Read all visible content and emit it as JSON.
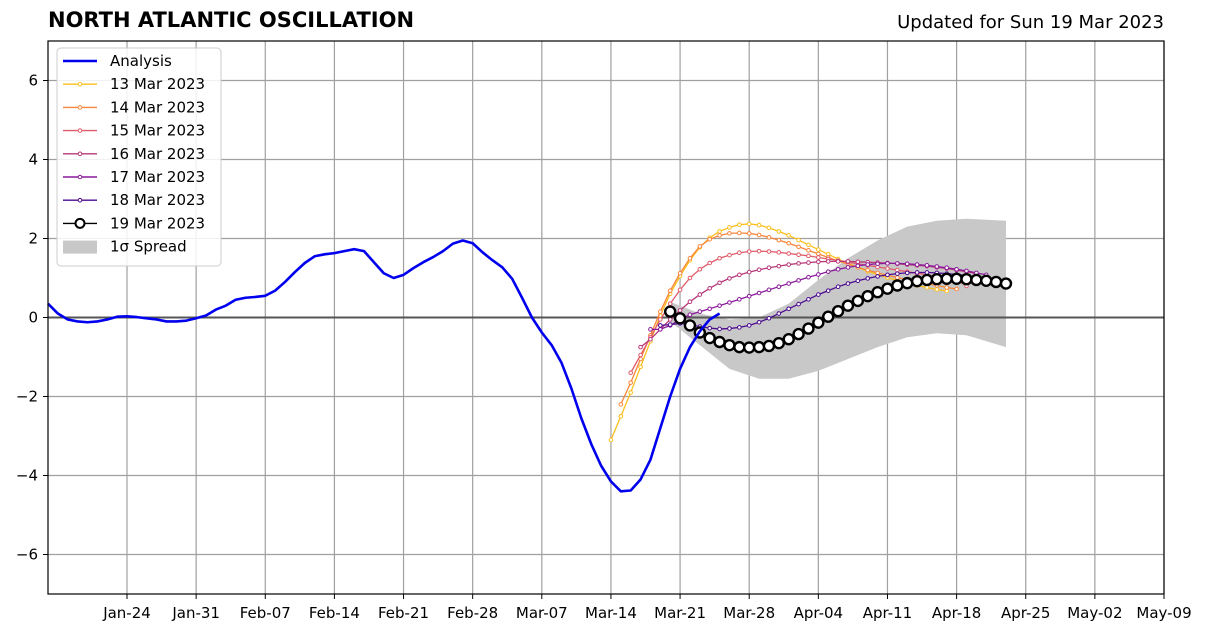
{
  "header": {
    "title": "NORTH ATLANTIC OSCILLATION",
    "updated": "Updated for Sun 19 Mar 2023"
  },
  "chart_data": {
    "type": "line",
    "title": "NORTH ATLANTIC OSCILLATION",
    "subtitle": "Updated for Sun 19 Mar 2023",
    "xlabel": "",
    "ylabel": "",
    "x_axis": {
      "start": "2023-01-16",
      "end": "2023-05-09",
      "ticks": [
        "Jan-24",
        "Jan-31",
        "Feb-07",
        "Feb-14",
        "Feb-21",
        "Feb-28",
        "Mar-07",
        "Mar-14",
        "Mar-21",
        "Mar-28",
        "Apr-04",
        "Apr-11",
        "Apr-18",
        "Apr-25",
        "May-02",
        "May-09"
      ]
    },
    "ylim": [
      -7,
      7
    ],
    "yticks": [
      -6,
      -4,
      -2,
      0,
      2,
      4,
      6
    ],
    "ytick_labels": [
      "−6",
      "−4",
      "−2",
      "0",
      "2",
      "4",
      "6"
    ],
    "grid": true,
    "zero_line": true,
    "legend_position": "top-left",
    "analysis": {
      "name": "Analysis",
      "color": "#0000ee",
      "points": [
        [
          "2023-01-16",
          0.35
        ],
        [
          "2023-01-17",
          0.1
        ],
        [
          "2023-01-18",
          -0.05
        ],
        [
          "2023-01-19",
          -0.1
        ],
        [
          "2023-01-20",
          -0.12
        ],
        [
          "2023-01-21",
          -0.1
        ],
        [
          "2023-01-22",
          -0.05
        ],
        [
          "2023-01-23",
          0.02
        ],
        [
          "2023-01-24",
          0.03
        ],
        [
          "2023-01-25",
          0.01
        ],
        [
          "2023-01-26",
          -0.02
        ],
        [
          "2023-01-27",
          -0.05
        ],
        [
          "2023-01-28",
          -0.1
        ],
        [
          "2023-01-29",
          -0.1
        ],
        [
          "2023-01-30",
          -0.08
        ],
        [
          "2023-01-31",
          -0.02
        ],
        [
          "2023-02-01",
          0.05
        ],
        [
          "2023-02-02",
          0.2
        ],
        [
          "2023-02-03",
          0.3
        ],
        [
          "2023-02-04",
          0.45
        ],
        [
          "2023-02-05",
          0.5
        ],
        [
          "2023-02-06",
          0.52
        ],
        [
          "2023-02-07",
          0.55
        ],
        [
          "2023-02-08",
          0.68
        ],
        [
          "2023-02-09",
          0.9
        ],
        [
          "2023-02-10",
          1.15
        ],
        [
          "2023-02-11",
          1.38
        ],
        [
          "2023-02-12",
          1.55
        ],
        [
          "2023-02-13",
          1.6
        ],
        [
          "2023-02-14",
          1.63
        ],
        [
          "2023-02-15",
          1.68
        ],
        [
          "2023-02-16",
          1.73
        ],
        [
          "2023-02-17",
          1.68
        ],
        [
          "2023-02-18",
          1.4
        ],
        [
          "2023-02-19",
          1.12
        ],
        [
          "2023-02-20",
          1.0
        ],
        [
          "2023-02-21",
          1.08
        ],
        [
          "2023-02-22",
          1.25
        ],
        [
          "2023-02-23",
          1.4
        ],
        [
          "2023-02-24",
          1.53
        ],
        [
          "2023-02-25",
          1.68
        ],
        [
          "2023-02-26",
          1.87
        ],
        [
          "2023-02-27",
          1.95
        ],
        [
          "2023-02-28",
          1.88
        ],
        [
          "2023-03-01",
          1.65
        ],
        [
          "2023-03-02",
          1.45
        ],
        [
          "2023-03-03",
          1.27
        ],
        [
          "2023-03-04",
          0.98
        ],
        [
          "2023-03-05",
          0.5
        ],
        [
          "2023-03-06",
          0.0
        ],
        [
          "2023-03-07",
          -0.38
        ],
        [
          "2023-03-08",
          -0.7
        ],
        [
          "2023-03-09",
          -1.15
        ],
        [
          "2023-03-10",
          -1.8
        ],
        [
          "2023-03-11",
          -2.55
        ],
        [
          "2023-03-12",
          -3.2
        ],
        [
          "2023-03-13",
          -3.75
        ],
        [
          "2023-03-14",
          -4.15
        ],
        [
          "2023-03-15",
          -4.4
        ],
        [
          "2023-03-16",
          -4.38
        ],
        [
          "2023-03-17",
          -4.1
        ],
        [
          "2023-03-18",
          -3.6
        ],
        [
          "2023-03-19",
          -2.8
        ],
        [
          "2023-03-20",
          -2.0
        ],
        [
          "2023-03-21",
          -1.3
        ],
        [
          "2023-03-22",
          -0.75
        ],
        [
          "2023-03-23",
          -0.35
        ],
        [
          "2023-03-24",
          -0.05
        ],
        [
          "2023-03-25",
          0.1
        ]
      ]
    },
    "series": [
      {
        "name": "13 Mar 2023",
        "color": "#fbbf1d",
        "x": [
          "2023-03-14",
          "2023-03-15",
          "2023-03-16",
          "2023-03-17",
          "2023-03-18",
          "2023-03-19",
          "2023-03-20",
          "2023-03-21",
          "2023-03-22",
          "2023-03-23",
          "2023-03-24",
          "2023-03-25",
          "2023-03-26",
          "2023-03-27",
          "2023-03-28",
          "2023-03-29",
          "2023-03-30",
          "2023-03-31",
          "2023-04-01",
          "2023-04-02",
          "2023-04-03",
          "2023-04-04",
          "2023-04-05",
          "2023-04-06",
          "2023-04-07",
          "2023-04-08",
          "2023-04-09",
          "2023-04-10",
          "2023-04-11",
          "2023-04-12",
          "2023-04-13",
          "2023-04-14",
          "2023-04-15",
          "2023-04-16",
          "2023-04-17"
        ],
        "values": [
          -3.1,
          -2.5,
          -1.9,
          -1.25,
          -0.6,
          0.05,
          0.6,
          1.05,
          1.45,
          1.78,
          2.02,
          2.18,
          2.28,
          2.35,
          2.37,
          2.34,
          2.27,
          2.18,
          2.08,
          1.96,
          1.84,
          1.72,
          1.6,
          1.48,
          1.37,
          1.27,
          1.17,
          1.09,
          1.01,
          0.94,
          0.87,
          0.81,
          0.76,
          0.71,
          0.67
        ]
      },
      {
        "name": "14 Mar 2023",
        "color": "#f8863c",
        "x": [
          "2023-03-15",
          "2023-03-16",
          "2023-03-17",
          "2023-03-18",
          "2023-03-19",
          "2023-03-20",
          "2023-03-21",
          "2023-03-22",
          "2023-03-23",
          "2023-03-24",
          "2023-03-25",
          "2023-03-26",
          "2023-03-27",
          "2023-03-28",
          "2023-03-29",
          "2023-03-30",
          "2023-03-31",
          "2023-04-01",
          "2023-04-02",
          "2023-04-03",
          "2023-04-04",
          "2023-04-05",
          "2023-04-06",
          "2023-04-07",
          "2023-04-08",
          "2023-04-09",
          "2023-04-10",
          "2023-04-11",
          "2023-04-12",
          "2023-04-13",
          "2023-04-14",
          "2023-04-15",
          "2023-04-16",
          "2023-04-17",
          "2023-04-18"
        ],
        "values": [
          -2.2,
          -1.65,
          -1.05,
          -0.45,
          0.15,
          0.68,
          1.12,
          1.5,
          1.8,
          1.98,
          2.08,
          2.13,
          2.14,
          2.13,
          2.09,
          2.03,
          1.96,
          1.88,
          1.79,
          1.7,
          1.61,
          1.52,
          1.43,
          1.35,
          1.27,
          1.2,
          1.13,
          1.07,
          1.01,
          0.96,
          0.91,
          0.86,
          0.81,
          0.76,
          0.72
        ]
      },
      {
        "name": "15 Mar 2023",
        "color": "#e05b6a",
        "x": [
          "2023-03-16",
          "2023-03-17",
          "2023-03-18",
          "2023-03-19",
          "2023-03-20",
          "2023-03-21",
          "2023-03-22",
          "2023-03-23",
          "2023-03-24",
          "2023-03-25",
          "2023-03-26",
          "2023-03-27",
          "2023-03-28",
          "2023-03-29",
          "2023-03-30",
          "2023-03-31",
          "2023-04-01",
          "2023-04-02",
          "2023-04-03",
          "2023-04-04",
          "2023-04-05",
          "2023-04-06",
          "2023-04-07",
          "2023-04-08",
          "2023-04-09",
          "2023-04-10",
          "2023-04-11",
          "2023-04-12",
          "2023-04-13",
          "2023-04-14",
          "2023-04-15",
          "2023-04-16",
          "2023-04-17",
          "2023-04-18",
          "2023-04-19"
        ],
        "values": [
          -1.4,
          -0.95,
          -0.5,
          -0.05,
          0.35,
          0.7,
          1.0,
          1.22,
          1.38,
          1.5,
          1.58,
          1.64,
          1.67,
          1.68,
          1.67,
          1.65,
          1.62,
          1.59,
          1.56,
          1.52,
          1.48,
          1.44,
          1.4,
          1.36,
          1.32,
          1.28,
          1.24,
          1.2,
          1.16,
          1.12,
          1.08,
          1.04,
          1.0,
          0.96,
          0.8
        ]
      },
      {
        "name": "16 Mar 2023",
        "color": "#b73779",
        "x": [
          "2023-03-17",
          "2023-03-18",
          "2023-03-19",
          "2023-03-20",
          "2023-03-21",
          "2023-03-22",
          "2023-03-23",
          "2023-03-24",
          "2023-03-25",
          "2023-03-26",
          "2023-03-27",
          "2023-03-28",
          "2023-03-29",
          "2023-03-30",
          "2023-03-31",
          "2023-04-01",
          "2023-04-02",
          "2023-04-03",
          "2023-04-04",
          "2023-04-05",
          "2023-04-06",
          "2023-04-07",
          "2023-04-08",
          "2023-04-09",
          "2023-04-10",
          "2023-04-11",
          "2023-04-12",
          "2023-04-13",
          "2023-04-14",
          "2023-04-15",
          "2023-04-16",
          "2023-04-17",
          "2023-04-18",
          "2023-04-19",
          "2023-04-20"
        ],
        "values": [
          -0.75,
          -0.55,
          -0.3,
          -0.05,
          0.18,
          0.4,
          0.58,
          0.74,
          0.88,
          0.99,
          1.08,
          1.15,
          1.21,
          1.26,
          1.3,
          1.34,
          1.37,
          1.39,
          1.41,
          1.42,
          1.42,
          1.42,
          1.41,
          1.4,
          1.39,
          1.38,
          1.36,
          1.34,
          1.32,
          1.3,
          1.27,
          1.24,
          1.2,
          1.16,
          1.11
        ]
      },
      {
        "name": "17 Mar 2023",
        "color": "#8a1a9b",
        "x": [
          "2023-03-18",
          "2023-03-19",
          "2023-03-20",
          "2023-03-21",
          "2023-03-22",
          "2023-03-23",
          "2023-03-24",
          "2023-03-25",
          "2023-03-26",
          "2023-03-27",
          "2023-03-28",
          "2023-03-29",
          "2023-03-30",
          "2023-03-31",
          "2023-04-01",
          "2023-04-02",
          "2023-04-03",
          "2023-04-04",
          "2023-04-05",
          "2023-04-06",
          "2023-04-07",
          "2023-04-08",
          "2023-04-09",
          "2023-04-10",
          "2023-04-11",
          "2023-04-12",
          "2023-04-13",
          "2023-04-14",
          "2023-04-15",
          "2023-04-16",
          "2023-04-17",
          "2023-04-18",
          "2023-04-19",
          "2023-04-20",
          "2023-04-21"
        ],
        "values": [
          -0.3,
          -0.3,
          -0.2,
          -0.05,
          0.07,
          0.15,
          0.22,
          0.3,
          0.38,
          0.46,
          0.54,
          0.62,
          0.7,
          0.78,
          0.86,
          0.94,
          1.02,
          1.09,
          1.16,
          1.22,
          1.27,
          1.31,
          1.34,
          1.36,
          1.37,
          1.37,
          1.36,
          1.34,
          1.32,
          1.29,
          1.26,
          1.22,
          1.18,
          1.13,
          1.08
        ]
      },
      {
        "name": "18 Mar 2023",
        "color": "#4c0a8f",
        "x": [
          "2023-03-19",
          "2023-03-20",
          "2023-03-21",
          "2023-03-22",
          "2023-03-23",
          "2023-03-24",
          "2023-03-25",
          "2023-03-26",
          "2023-03-27",
          "2023-03-28",
          "2023-03-29",
          "2023-03-30",
          "2023-03-31",
          "2023-04-01",
          "2023-04-02",
          "2023-04-03",
          "2023-04-04",
          "2023-04-05",
          "2023-04-06",
          "2023-04-07",
          "2023-04-08",
          "2023-04-09",
          "2023-04-10",
          "2023-04-11",
          "2023-04-12",
          "2023-04-13",
          "2023-04-14",
          "2023-04-15",
          "2023-04-16",
          "2023-04-17",
          "2023-04-18",
          "2023-04-19",
          "2023-04-20",
          "2023-04-21",
          "2023-04-22"
        ],
        "values": [
          -0.2,
          -0.18,
          -0.15,
          -0.18,
          -0.23,
          -0.27,
          -0.29,
          -0.28,
          -0.25,
          -0.2,
          -0.12,
          -0.02,
          0.1,
          0.22,
          0.34,
          0.46,
          0.58,
          0.68,
          0.78,
          0.86,
          0.93,
          0.99,
          1.04,
          1.08,
          1.11,
          1.13,
          1.14,
          1.14,
          1.13,
          1.11,
          1.09,
          1.06,
          1.02,
          0.98,
          0.93
        ]
      },
      {
        "name": "19 Mar 2023",
        "color": "#000000",
        "x": [
          "2023-03-20",
          "2023-03-21",
          "2023-03-22",
          "2023-03-23",
          "2023-03-24",
          "2023-03-25",
          "2023-03-26",
          "2023-03-27",
          "2023-03-28",
          "2023-03-29",
          "2023-03-30",
          "2023-03-31",
          "2023-04-01",
          "2023-04-02",
          "2023-04-03",
          "2023-04-04",
          "2023-04-05",
          "2023-04-06",
          "2023-04-07",
          "2023-04-08",
          "2023-04-09",
          "2023-04-10",
          "2023-04-11",
          "2023-04-12",
          "2023-04-13",
          "2023-04-14",
          "2023-04-15",
          "2023-04-16",
          "2023-04-17",
          "2023-04-18",
          "2023-04-19",
          "2023-04-20",
          "2023-04-21",
          "2023-04-22",
          "2023-04-23"
        ],
        "values": [
          0.15,
          -0.02,
          -0.2,
          -0.38,
          -0.52,
          -0.62,
          -0.7,
          -0.75,
          -0.76,
          -0.75,
          -0.72,
          -0.65,
          -0.55,
          -0.42,
          -0.28,
          -0.13,
          0.02,
          0.16,
          0.3,
          0.42,
          0.54,
          0.64,
          0.73,
          0.81,
          0.87,
          0.92,
          0.95,
          0.97,
          0.98,
          0.98,
          0.97,
          0.95,
          0.93,
          0.9,
          0.86
        ]
      }
    ],
    "spread": {
      "name": "1σ Spread",
      "color": "#c8c8c8",
      "x": [
        "2023-03-20",
        "2023-03-23",
        "2023-03-26",
        "2023-03-29",
        "2023-04-01",
        "2023-04-04",
        "2023-04-07",
        "2023-04-10",
        "2023-04-13",
        "2023-04-16",
        "2023-04-19",
        "2023-04-23"
      ],
      "upper": [
        0.4,
        0.1,
        -0.05,
        0.0,
        0.35,
        0.95,
        1.5,
        1.95,
        2.3,
        2.45,
        2.5,
        2.45
      ],
      "lower": [
        -0.1,
        -0.7,
        -1.3,
        -1.55,
        -1.55,
        -1.35,
        -1.05,
        -0.75,
        -0.5,
        -0.4,
        -0.45,
        -0.75
      ]
    }
  }
}
